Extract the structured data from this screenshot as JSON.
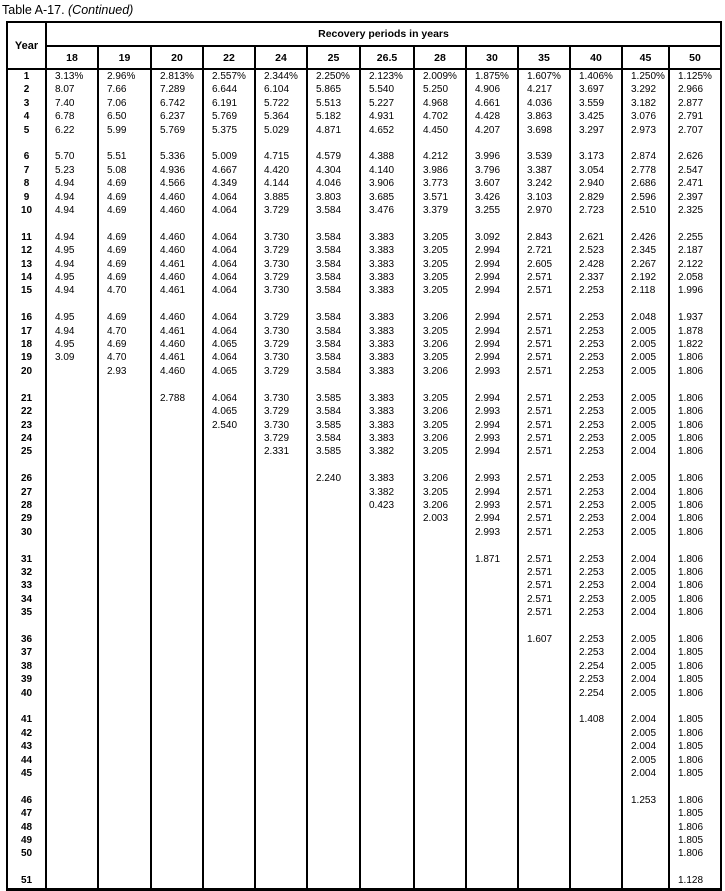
{
  "title": {
    "label": "Table A-17.",
    "continued": " (Continued)"
  },
  "table": {
    "year_header": "Year",
    "group_header": "Recovery periods in years",
    "columns": [
      "18",
      "19",
      "20",
      "22",
      "24",
      "25",
      "26.5",
      "28",
      "30",
      "35",
      "40",
      "45",
      "50"
    ],
    "group_size": 5,
    "rows": [
      {
        "year": "1",
        "values": [
          "3.13%",
          "2.96%",
          "2.813%",
          "2.557%",
          "2.344%",
          "2.250%",
          "2.123%",
          "2.009%",
          "1.875%",
          "1.607%",
          "1.406%",
          "1.250%",
          "1.125%"
        ]
      },
      {
        "year": "2",
        "values": [
          "8.07",
          "7.66",
          "7.289",
          "6.644",
          "6.104",
          "5.865",
          "5.540",
          "5.250",
          "4.906",
          "4.217",
          "3.697",
          "3.292",
          "2.966"
        ]
      },
      {
        "year": "3",
        "values": [
          "7.40",
          "7.06",
          "6.742",
          "6.191",
          "5.722",
          "5.513",
          "5.227",
          "4.968",
          "4.661",
          "4.036",
          "3.559",
          "3.182",
          "2.877"
        ]
      },
      {
        "year": "4",
        "values": [
          "6.78",
          "6.50",
          "6.237",
          "5.769",
          "5.364",
          "5.182",
          "4.931",
          "4.702",
          "4.428",
          "3.863",
          "3.425",
          "3.076",
          "2.791"
        ]
      },
      {
        "year": "5",
        "values": [
          "6.22",
          "5.99",
          "5.769",
          "5.375",
          "5.029",
          "4.871",
          "4.652",
          "4.450",
          "4.207",
          "3.698",
          "3.297",
          "2.973",
          "2.707"
        ]
      },
      {
        "year": "6",
        "values": [
          "5.70",
          "5.51",
          "5.336",
          "5.009",
          "4.715",
          "4.579",
          "4.388",
          "4.212",
          "3.996",
          "3.539",
          "3.173",
          "2.874",
          "2.626"
        ]
      },
      {
        "year": "7",
        "values": [
          "5.23",
          "5.08",
          "4.936",
          "4.667",
          "4.420",
          "4.304",
          "4.140",
          "3.986",
          "3.796",
          "3.387",
          "3.054",
          "2.778",
          "2.547"
        ]
      },
      {
        "year": "8",
        "values": [
          "4.94",
          "4.69",
          "4.566",
          "4.349",
          "4.144",
          "4.046",
          "3.906",
          "3.773",
          "3.607",
          "3.242",
          "2.940",
          "2.686",
          "2.471"
        ]
      },
      {
        "year": "9",
        "values": [
          "4.94",
          "4.69",
          "4.460",
          "4.064",
          "3.885",
          "3.803",
          "3.685",
          "3.571",
          "3.426",
          "3.103",
          "2.829",
          "2.596",
          "2.397"
        ]
      },
      {
        "year": "10",
        "values": [
          "4.94",
          "4.69",
          "4.460",
          "4.064",
          "3.729",
          "3.584",
          "3.476",
          "3.379",
          "3.255",
          "2.970",
          "2.723",
          "2.510",
          "2.325"
        ]
      },
      {
        "year": "11",
        "values": [
          "4.94",
          "4.69",
          "4.460",
          "4.064",
          "3.730",
          "3.584",
          "3.383",
          "3.205",
          "3.092",
          "2.843",
          "2.621",
          "2.426",
          "2.255"
        ]
      },
      {
        "year": "12",
        "values": [
          "4.95",
          "4.69",
          "4.460",
          "4.064",
          "3.729",
          "3.584",
          "3.383",
          "3.205",
          "2.994",
          "2.721",
          "2.523",
          "2.345",
          "2.187"
        ]
      },
      {
        "year": "13",
        "values": [
          "4.94",
          "4.69",
          "4.461",
          "4.064",
          "3.730",
          "3.584",
          "3.383",
          "3.205",
          "2.994",
          "2.605",
          "2.428",
          "2.267",
          "2.122"
        ]
      },
      {
        "year": "14",
        "values": [
          "4.95",
          "4.69",
          "4.460",
          "4.064",
          "3.729",
          "3.584",
          "3.383",
          "3.205",
          "2.994",
          "2.571",
          "2.337",
          "2.192",
          "2.058"
        ]
      },
      {
        "year": "15",
        "values": [
          "4.94",
          "4.70",
          "4.461",
          "4.064",
          "3.730",
          "3.584",
          "3.383",
          "3.205",
          "2.994",
          "2.571",
          "2.253",
          "2.118",
          "1.996"
        ]
      },
      {
        "year": "16",
        "values": [
          "4.95",
          "4.69",
          "4.460",
          "4.064",
          "3.729",
          "3.584",
          "3.383",
          "3.206",
          "2.994",
          "2.571",
          "2.253",
          "2.048",
          "1.937"
        ]
      },
      {
        "year": "17",
        "values": [
          "4.94",
          "4.70",
          "4.461",
          "4.064",
          "3.730",
          "3.584",
          "3.383",
          "3.205",
          "2.994",
          "2.571",
          "2.253",
          "2.005",
          "1.878"
        ]
      },
      {
        "year": "18",
        "values": [
          "4.95",
          "4.69",
          "4.460",
          "4.065",
          "3.729",
          "3.584",
          "3.383",
          "3.206",
          "2.994",
          "2.571",
          "2.253",
          "2.005",
          "1.822"
        ]
      },
      {
        "year": "19",
        "values": [
          "3.09",
          "4.70",
          "4.461",
          "4.064",
          "3.730",
          "3.584",
          "3.383",
          "3.205",
          "2.994",
          "2.571",
          "2.253",
          "2.005",
          "1.806"
        ]
      },
      {
        "year": "20",
        "values": [
          "",
          "2.93",
          "4.460",
          "4.065",
          "3.729",
          "3.584",
          "3.383",
          "3.206",
          "2.993",
          "2.571",
          "2.253",
          "2.005",
          "1.806"
        ]
      },
      {
        "year": "21",
        "values": [
          "",
          "",
          "2.788",
          "4.064",
          "3.730",
          "3.585",
          "3.383",
          "3.205",
          "2.994",
          "2.571",
          "2.253",
          "2.005",
          "1.806"
        ]
      },
      {
        "year": "22",
        "values": [
          "",
          "",
          "",
          "4.065",
          "3.729",
          "3.584",
          "3.383",
          "3.206",
          "2.993",
          "2.571",
          "2.253",
          "2.005",
          "1.806"
        ]
      },
      {
        "year": "23",
        "values": [
          "",
          "",
          "",
          "2.540",
          "3.730",
          "3.585",
          "3.383",
          "3.205",
          "2.994",
          "2.571",
          "2.253",
          "2.005",
          "1.806"
        ]
      },
      {
        "year": "24",
        "values": [
          "",
          "",
          "",
          "",
          "3.729",
          "3.584",
          "3.383",
          "3.206",
          "2.993",
          "2.571",
          "2.253",
          "2.005",
          "1.806"
        ]
      },
      {
        "year": "25",
        "values": [
          "",
          "",
          "",
          "",
          "2.331",
          "3.585",
          "3.382",
          "3.205",
          "2.994",
          "2.571",
          "2.253",
          "2.004",
          "1.806"
        ]
      },
      {
        "year": "26",
        "values": [
          "",
          "",
          "",
          "",
          "",
          "2.240",
          "3.383",
          "3.206",
          "2.993",
          "2.571",
          "2.253",
          "2.005",
          "1.806"
        ]
      },
      {
        "year": "27",
        "values": [
          "",
          "",
          "",
          "",
          "",
          "",
          "3.382",
          "3.205",
          "2.994",
          "2.571",
          "2.253",
          "2.004",
          "1.806"
        ]
      },
      {
        "year": "28",
        "values": [
          "",
          "",
          "",
          "",
          "",
          "",
          "0.423",
          "3.206",
          "2.993",
          "2.571",
          "2.253",
          "2.005",
          "1.806"
        ]
      },
      {
        "year": "29",
        "values": [
          "",
          "",
          "",
          "",
          "",
          "",
          "",
          "2.003",
          "2.994",
          "2.571",
          "2.253",
          "2.004",
          "1.806"
        ]
      },
      {
        "year": "30",
        "values": [
          "",
          "",
          "",
          "",
          "",
          "",
          "",
          "",
          "2.993",
          "2.571",
          "2.253",
          "2.005",
          "1.806"
        ]
      },
      {
        "year": "31",
        "values": [
          "",
          "",
          "",
          "",
          "",
          "",
          "",
          "",
          "1.871",
          "2.571",
          "2.253",
          "2.004",
          "1.806"
        ]
      },
      {
        "year": "32",
        "values": [
          "",
          "",
          "",
          "",
          "",
          "",
          "",
          "",
          "",
          "2.571",
          "2.253",
          "2.005",
          "1.806"
        ]
      },
      {
        "year": "33",
        "values": [
          "",
          "",
          "",
          "",
          "",
          "",
          "",
          "",
          "",
          "2.571",
          "2.253",
          "2.004",
          "1.806"
        ]
      },
      {
        "year": "34",
        "values": [
          "",
          "",
          "",
          "",
          "",
          "",
          "",
          "",
          "",
          "2.571",
          "2.253",
          "2.005",
          "1.806"
        ]
      },
      {
        "year": "35",
        "values": [
          "",
          "",
          "",
          "",
          "",
          "",
          "",
          "",
          "",
          "2.571",
          "2.253",
          "2.004",
          "1.806"
        ]
      },
      {
        "year": "36",
        "values": [
          "",
          "",
          "",
          "",
          "",
          "",
          "",
          "",
          "",
          "1.607",
          "2.253",
          "2.005",
          "1.806"
        ]
      },
      {
        "year": "37",
        "values": [
          "",
          "",
          "",
          "",
          "",
          "",
          "",
          "",
          "",
          "",
          "2.253",
          "2.004",
          "1.805"
        ]
      },
      {
        "year": "38",
        "values": [
          "",
          "",
          "",
          "",
          "",
          "",
          "",
          "",
          "",
          "",
          "2.254",
          "2.005",
          "1.806"
        ]
      },
      {
        "year": "39",
        "values": [
          "",
          "",
          "",
          "",
          "",
          "",
          "",
          "",
          "",
          "",
          "2.253",
          "2.004",
          "1.805"
        ]
      },
      {
        "year": "40",
        "values": [
          "",
          "",
          "",
          "",
          "",
          "",
          "",
          "",
          "",
          "",
          "2.254",
          "2.005",
          "1.806"
        ]
      },
      {
        "year": "41",
        "values": [
          "",
          "",
          "",
          "",
          "",
          "",
          "",
          "",
          "",
          "",
          "1.408",
          "2.004",
          "1.805"
        ]
      },
      {
        "year": "42",
        "values": [
          "",
          "",
          "",
          "",
          "",
          "",
          "",
          "",
          "",
          "",
          "",
          "2.005",
          "1.806"
        ]
      },
      {
        "year": "43",
        "values": [
          "",
          "",
          "",
          "",
          "",
          "",
          "",
          "",
          "",
          "",
          "",
          "2.004",
          "1.805"
        ]
      },
      {
        "year": "44",
        "values": [
          "",
          "",
          "",
          "",
          "",
          "",
          "",
          "",
          "",
          "",
          "",
          "2.005",
          "1.806"
        ]
      },
      {
        "year": "45",
        "values": [
          "",
          "",
          "",
          "",
          "",
          "",
          "",
          "",
          "",
          "",
          "",
          "2.004",
          "1.805"
        ]
      },
      {
        "year": "46",
        "values": [
          "",
          "",
          "",
          "",
          "",
          "",
          "",
          "",
          "",
          "",
          "",
          "1.253",
          "1.806"
        ]
      },
      {
        "year": "47",
        "values": [
          "",
          "",
          "",
          "",
          "",
          "",
          "",
          "",
          "",
          "",
          "",
          "",
          "1.805"
        ]
      },
      {
        "year": "48",
        "values": [
          "",
          "",
          "",
          "",
          "",
          "",
          "",
          "",
          "",
          "",
          "",
          "",
          "1.806"
        ]
      },
      {
        "year": "49",
        "values": [
          "",
          "",
          "",
          "",
          "",
          "",
          "",
          "",
          "",
          "",
          "",
          "",
          "1.805"
        ]
      },
      {
        "year": "50",
        "values": [
          "",
          "",
          "",
          "",
          "",
          "",
          "",
          "",
          "",
          "",
          "",
          "",
          "1.806"
        ]
      },
      {
        "year": "51",
        "values": [
          "",
          "",
          "",
          "",
          "",
          "",
          "",
          "",
          "",
          "",
          "",
          "",
          "1.128"
        ]
      }
    ]
  },
  "colors": {
    "text": "#000000",
    "background": "#ffffff",
    "border": "#000000"
  }
}
